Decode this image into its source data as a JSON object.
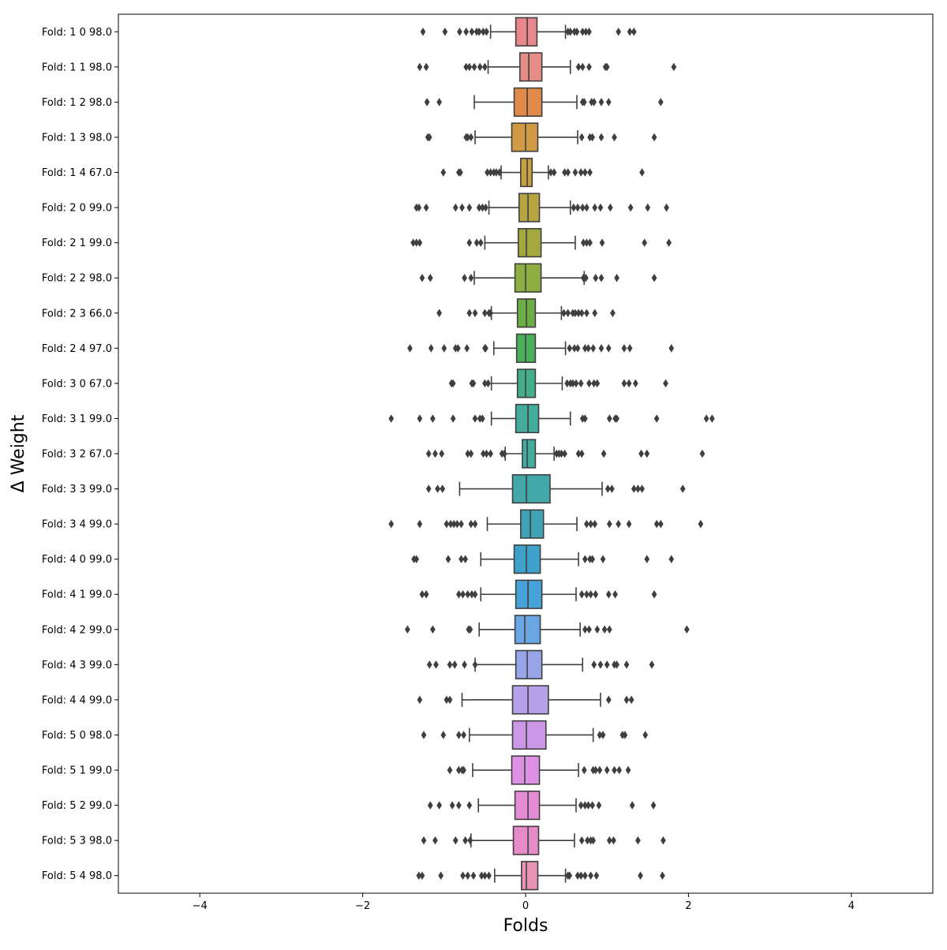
{
  "chart_data": {
    "type": "boxplot",
    "orientation": "horizontal",
    "xlabel": "Folds",
    "ylabel": "Δ Weight",
    "xlim": [
      -5,
      5
    ],
    "xticks": [
      -4,
      -2,
      0,
      2,
      4
    ],
    "xtick_labels": [
      "−4",
      "−2",
      "0",
      "2",
      "4"
    ],
    "grid": false,
    "legend": "none",
    "categories": [
      {
        "label": "Fold: 1  0 98.0",
        "color": "#e8888d",
        "whisker_low": -0.43,
        "q1": -0.12,
        "median": 0.02,
        "q3": 0.14,
        "whisker_high": 0.49,
        "outliers": [
          -1.26,
          -0.99,
          -0.81,
          -0.73,
          -0.66,
          -0.6,
          -0.57,
          -0.52,
          -0.48,
          0.52,
          0.55,
          0.6,
          0.63,
          0.7,
          0.74,
          0.78,
          1.14,
          1.28,
          1.33
        ]
      },
      {
        "label": "Fold: 1  1 98.0",
        "color": "#e68e85",
        "whisker_low": -0.46,
        "q1": -0.07,
        "median": 0.04,
        "q3": 0.2,
        "whisker_high": 0.55,
        "outliers": [
          -1.3,
          -1.22,
          -0.73,
          -0.69,
          -0.63,
          -0.56,
          -0.5,
          0.65,
          0.7,
          0.78,
          0.98,
          1.0,
          1.82
        ]
      },
      {
        "label": "Fold: 1  2 98.0",
        "color": "#e28a4a",
        "whisker_low": -0.63,
        "q1": -0.14,
        "median": 0.02,
        "q3": 0.2,
        "whisker_high": 0.63,
        "outliers": [
          -1.21,
          -1.06,
          0.7,
          0.72,
          0.81,
          0.84,
          0.93,
          1.02,
          1.66
        ]
      },
      {
        "label": "Fold: 1  3 98.0",
        "color": "#d09a42",
        "whisker_low": -0.62,
        "q1": -0.17,
        "median": 0.0,
        "q3": 0.15,
        "whisker_high": 0.64,
        "outliers": [
          -1.2,
          -1.18,
          -0.73,
          -0.71,
          -0.67,
          0.69,
          0.79,
          0.82,
          0.93,
          1.09,
          1.58
        ]
      },
      {
        "label": "Fold: 1  4 67.0",
        "color": "#c8a044",
        "whisker_low": -0.3,
        "q1": -0.06,
        "median": 0.02,
        "q3": 0.08,
        "whisker_high": 0.28,
        "outliers": [
          -1.01,
          -0.82,
          -0.8,
          -0.47,
          -0.43,
          -0.39,
          -0.36,
          -0.32,
          0.31,
          0.35,
          0.48,
          0.52,
          0.61,
          0.68,
          0.73,
          0.79,
          1.43
        ]
      },
      {
        "label": "Fold: 2  0 99.0",
        "color": "#b7a542",
        "whisker_low": -0.45,
        "q1": -0.08,
        "median": 0.03,
        "q3": 0.17,
        "whisker_high": 0.55,
        "outliers": [
          -1.34,
          -1.31,
          -1.22,
          -0.86,
          -0.78,
          -0.69,
          -0.57,
          -0.53,
          -0.49,
          0.59,
          0.64,
          0.7,
          0.75,
          0.85,
          0.92,
          1.04,
          1.29,
          1.5,
          1.73
        ]
      },
      {
        "label": "Fold: 2  1 99.0",
        "color": "#a5a83e",
        "whisker_low": -0.5,
        "q1": -0.09,
        "median": 0.01,
        "q3": 0.19,
        "whisker_high": 0.61,
        "outliers": [
          -1.38,
          -1.34,
          -1.3,
          -0.69,
          -0.6,
          -0.55,
          0.71,
          0.75,
          0.79,
          0.94,
          1.46,
          1.76
        ]
      },
      {
        "label": "Fold: 2  2 98.0",
        "color": "#8eae41",
        "whisker_low": -0.63,
        "q1": -0.13,
        "median": 0.0,
        "q3": 0.19,
        "whisker_high": 0.72,
        "outliers": [
          -1.27,
          -1.17,
          -0.75,
          -0.67,
          0.71,
          0.74,
          0.86,
          0.93,
          1.12,
          1.58
        ]
      },
      {
        "label": "Fold: 2  3 66.0",
        "color": "#6dad45",
        "whisker_low": -0.42,
        "q1": -0.1,
        "median": 0.01,
        "q3": 0.12,
        "whisker_high": 0.44,
        "outliers": [
          -1.06,
          -0.69,
          -0.62,
          -0.5,
          -0.45,
          -0.43,
          0.47,
          0.52,
          0.58,
          0.61,
          0.65,
          0.69,
          0.75,
          0.85,
          1.07
        ]
      },
      {
        "label": "Fold: 2  4 97.0",
        "color": "#4bb05c",
        "whisker_low": -0.39,
        "q1": -0.11,
        "median": 0.0,
        "q3": 0.12,
        "whisker_high": 0.49,
        "outliers": [
          -1.42,
          -1.16,
          -1.0,
          -0.86,
          -0.83,
          -0.72,
          -0.5,
          -0.49,
          0.54,
          0.6,
          0.64,
          0.73,
          0.77,
          0.83,
          0.93,
          1.02,
          1.21,
          1.28,
          1.79
        ]
      },
      {
        "label": "Fold: 3  0 67.0",
        "color": "#44ae8b",
        "whisker_low": -0.42,
        "q1": -0.1,
        "median": 0.0,
        "q3": 0.12,
        "whisker_high": 0.45,
        "outliers": [
          -0.91,
          -0.89,
          -0.66,
          -0.64,
          -0.5,
          -0.46,
          0.51,
          0.55,
          0.58,
          0.62,
          0.68,
          0.78,
          0.84,
          0.88,
          1.21,
          1.27,
          1.35,
          1.72
        ]
      },
      {
        "label": "Fold: 3  1 99.0",
        "color": "#43ac9c",
        "whisker_low": -0.42,
        "q1": -0.12,
        "median": 0.03,
        "q3": 0.16,
        "whisker_high": 0.55,
        "outliers": [
          -1.65,
          -1.3,
          -1.14,
          -0.89,
          -0.62,
          -0.56,
          -0.53,
          0.7,
          0.73,
          1.03,
          1.1,
          1.12,
          1.61,
          2.22,
          2.29
        ]
      },
      {
        "label": "Fold: 3  2 67.0",
        "color": "#44ab9f",
        "whisker_low": -0.25,
        "q1": -0.04,
        "median": 0.02,
        "q3": 0.12,
        "whisker_high": 0.35,
        "outliers": [
          -1.19,
          -1.11,
          -1.03,
          -0.71,
          -0.67,
          -0.52,
          -0.48,
          -0.43,
          -0.29,
          -0.26,
          0.38,
          0.41,
          0.44,
          0.48,
          0.65,
          0.69,
          0.96,
          1.42,
          1.49,
          2.17
        ]
      },
      {
        "label": "Fold: 3  3 99.0",
        "color": "#43a7a8",
        "whisker_low": -0.81,
        "q1": -0.16,
        "median": 0.01,
        "q3": 0.3,
        "whisker_high": 0.94,
        "outliers": [
          -1.19,
          -1.08,
          -1.02,
          1.01,
          1.06,
          1.33,
          1.38,
          1.43,
          1.93
        ]
      },
      {
        "label": "Fold: 3  4 99.0",
        "color": "#3fa3b4",
        "whisker_low": -0.47,
        "q1": -0.06,
        "median": 0.06,
        "q3": 0.22,
        "whisker_high": 0.63,
        "outliers": [
          -1.65,
          -1.3,
          -0.97,
          -0.92,
          -0.88,
          -0.84,
          -0.79,
          -0.67,
          -0.62,
          0.75,
          0.8,
          0.85,
          1.03,
          1.14,
          1.27,
          1.61,
          1.66,
          2.15
        ]
      },
      {
        "label": "Fold: 4  0 99.0",
        "color": "#3ea1c9",
        "whisker_low": -0.55,
        "q1": -0.14,
        "median": 0.01,
        "q3": 0.18,
        "whisker_high": 0.65,
        "outliers": [
          -1.37,
          -1.34,
          -0.95,
          -0.79,
          -0.74,
          0.73,
          0.79,
          0.82,
          0.95,
          1.49,
          1.79
        ]
      },
      {
        "label": "Fold: 4  1 99.0",
        "color": "#47a2d9",
        "whisker_low": -0.55,
        "q1": -0.12,
        "median": 0.03,
        "q3": 0.2,
        "whisker_high": 0.62,
        "outliers": [
          -1.27,
          -1.22,
          -0.82,
          -0.77,
          -0.71,
          -0.66,
          -0.62,
          0.69,
          0.75,
          0.8,
          0.86,
          1.02,
          1.1,
          1.58
        ]
      },
      {
        "label": "Fold: 4  2 99.0",
        "color": "#6aa6e3",
        "whisker_low": -0.57,
        "q1": -0.13,
        "median": -0.01,
        "q3": 0.18,
        "whisker_high": 0.67,
        "outliers": [
          -1.45,
          -1.14,
          -0.7,
          -0.68,
          0.73,
          0.78,
          0.88,
          0.97,
          1.03,
          1.98
        ]
      },
      {
        "label": "Fold: 4  3 99.0",
        "color": "#97a5e8",
        "whisker_low": -0.62,
        "q1": -0.12,
        "median": 0.02,
        "q3": 0.2,
        "whisker_high": 0.7,
        "outliers": [
          -1.18,
          -1.1,
          -0.93,
          -0.87,
          -0.75,
          -0.62,
          0.84,
          0.92,
          1.0,
          1.09,
          1.12,
          1.24,
          1.55
        ]
      },
      {
        "label": "Fold: 4  4 99.0",
        "color": "#b7a0ea",
        "whisker_low": -0.78,
        "q1": -0.16,
        "median": 0.03,
        "q3": 0.28,
        "whisker_high": 0.92,
        "outliers": [
          -1.3,
          -0.97,
          -0.93,
          1.02,
          1.24,
          1.3
        ]
      },
      {
        "label": "Fold: 5  0 98.0",
        "color": "#cb98e8",
        "whisker_low": -0.69,
        "q1": -0.16,
        "median": 0.01,
        "q3": 0.25,
        "whisker_high": 0.83,
        "outliers": [
          -1.25,
          -1.01,
          -0.82,
          -0.76,
          0.91,
          0.95,
          1.19,
          1.22,
          1.47
        ]
      },
      {
        "label": "Fold: 5  1 99.0",
        "color": "#de90e4",
        "whisker_low": -0.65,
        "q1": -0.17,
        "median": -0.01,
        "q3": 0.17,
        "whisker_high": 0.65,
        "outliers": [
          -0.93,
          -0.82,
          -0.78,
          -0.76,
          0.72,
          0.83,
          0.86,
          0.91,
          1.0,
          1.09,
          1.15,
          1.26
        ]
      },
      {
        "label": "Fold: 5  2 99.0",
        "color": "#e48cd6",
        "whisker_low": -0.58,
        "q1": -0.13,
        "median": 0.03,
        "q3": 0.17,
        "whisker_high": 0.62,
        "outliers": [
          -1.17,
          -1.06,
          -0.9,
          -0.82,
          -0.69,
          0.68,
          0.73,
          0.77,
          0.82,
          0.9,
          1.31,
          1.57
        ]
      },
      {
        "label": "Fold: 5  3 98.0",
        "color": "#e58bc7",
        "whisker_low": -0.67,
        "q1": -0.15,
        "median": 0.03,
        "q3": 0.16,
        "whisker_high": 0.6,
        "outliers": [
          -1.25,
          -1.11,
          -0.86,
          -0.74,
          -0.68,
          0.69,
          0.76,
          0.8,
          0.83,
          1.03,
          1.08,
          1.38,
          1.69
        ]
      },
      {
        "label": "Fold: 5  4 98.0",
        "color": "#e994b5",
        "whisker_low": -0.38,
        "q1": -0.05,
        "median": 0.01,
        "q3": 0.15,
        "whisker_high": 0.49,
        "outliers": [
          -1.31,
          -1.27,
          -1.04,
          -0.77,
          -0.71,
          -0.64,
          -0.54,
          -0.5,
          -0.45,
          0.52,
          0.54,
          0.64,
          0.68,
          0.73,
          0.8,
          0.87,
          1.41,
          1.68
        ]
      }
    ]
  }
}
